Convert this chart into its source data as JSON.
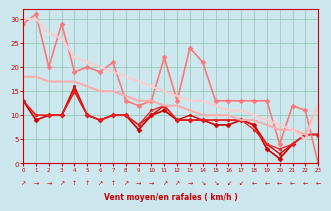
{
  "xlabel": "Vent moyen/en rafales ( km/h )",
  "xlim": [
    0,
    23
  ],
  "ylim": [
    0,
    32
  ],
  "yticks": [
    0,
    5,
    10,
    15,
    20,
    25,
    30
  ],
  "xticks": [
    0,
    1,
    2,
    3,
    4,
    5,
    6,
    7,
    8,
    9,
    10,
    11,
    12,
    13,
    14,
    15,
    16,
    17,
    18,
    19,
    20,
    21,
    22,
    23
  ],
  "bg_color": "#cce8ee",
  "grid_color": "#99ccbb",
  "series": [
    {
      "x": [
        0,
        1,
        2,
        3,
        4,
        5,
        6,
        7,
        8,
        9,
        10,
        11,
        12,
        13,
        14,
        15,
        16,
        17,
        18,
        19,
        20,
        21,
        22,
        23
      ],
      "y": [
        13,
        9,
        10,
        10,
        15,
        10,
        9,
        10,
        10,
        7,
        10,
        11,
        9,
        9,
        9,
        8,
        8,
        9,
        8,
        3,
        1,
        4,
        6,
        6
      ],
      "color": "#cc0000",
      "lw": 1.2,
      "marker": "D",
      "ms": 2.5
    },
    {
      "x": [
        0,
        1,
        2,
        3,
        4,
        5,
        6,
        7,
        8,
        9,
        10,
        11,
        12,
        13,
        14,
        15,
        16,
        17,
        18,
        19,
        20,
        21,
        22,
        23
      ],
      "y": [
        13,
        10,
        10,
        10,
        16,
        10,
        9,
        10,
        10,
        8,
        10,
        12,
        9,
        10,
        9,
        9,
        9,
        9,
        8,
        4,
        2,
        4,
        6,
        6
      ],
      "color": "#dd0000",
      "lw": 1.0,
      "marker": "s",
      "ms": 2.0
    },
    {
      "x": [
        0,
        1,
        2,
        3,
        4,
        5,
        6,
        7,
        8,
        9,
        10,
        11,
        12,
        13,
        14,
        15,
        16,
        17,
        18,
        19,
        20,
        21,
        22,
        23
      ],
      "y": [
        13,
        10,
        10,
        10,
        15,
        10,
        9,
        10,
        10,
        8,
        11,
        12,
        9,
        9,
        9,
        9,
        9,
        9,
        7,
        4,
        3,
        4,
        6,
        6
      ],
      "color": "#ee2222",
      "lw": 0.9,
      "marker": "o",
      "ms": 2.0
    },
    {
      "x": [
        0,
        1,
        2,
        3,
        4,
        5,
        6,
        7,
        8,
        9,
        10,
        11,
        12,
        13,
        14,
        15,
        16,
        17,
        18,
        19,
        20,
        21,
        22,
        23
      ],
      "y": [
        29,
        31,
        20,
        29,
        19,
        20,
        19,
        21,
        13,
        12,
        13,
        22,
        13,
        24,
        21,
        13,
        13,
        13,
        13,
        13,
        4,
        12,
        11,
        0
      ],
      "color": "#ff7777",
      "lw": 1.2,
      "marker": "D",
      "ms": 2.5
    },
    {
      "x": [
        0,
        1,
        2,
        3,
        4,
        5,
        6,
        7,
        8,
        9,
        10,
        11,
        12,
        13,
        14,
        15,
        16,
        17,
        18,
        19,
        20,
        21,
        22,
        23
      ],
      "y": [
        18,
        18,
        17,
        17,
        17,
        16,
        15,
        15,
        14,
        13,
        13,
        12,
        12,
        11,
        10,
        10,
        10,
        9,
        9,
        8,
        7,
        7,
        6,
        12
      ],
      "color": "#ffaaaa",
      "lw": 1.5,
      "marker": null,
      "ms": 0
    },
    {
      "x": [
        0,
        1,
        2,
        3,
        4,
        5,
        6,
        7,
        8,
        9,
        10,
        11,
        12,
        13,
        14,
        15,
        16,
        17,
        18,
        19,
        20,
        21,
        22,
        23
      ],
      "y": [
        30,
        30,
        27,
        26,
        22,
        21,
        20,
        19,
        18,
        17,
        16,
        15,
        14,
        13,
        13,
        12,
        11,
        11,
        10,
        9,
        8,
        7,
        5,
        12
      ],
      "color": "#ffcccc",
      "lw": 1.5,
      "marker": null,
      "ms": 0
    }
  ],
  "arrows": [
    "↗",
    "→",
    "→",
    "↗",
    "↑",
    "↑",
    "↗",
    "↑",
    "↗",
    "→",
    "→",
    "↗",
    "↗",
    "→",
    "↘",
    "↘",
    "↙",
    "↙",
    "←",
    "←",
    "←",
    "←",
    "←",
    "←"
  ],
  "arrow_color": "#dd0000"
}
